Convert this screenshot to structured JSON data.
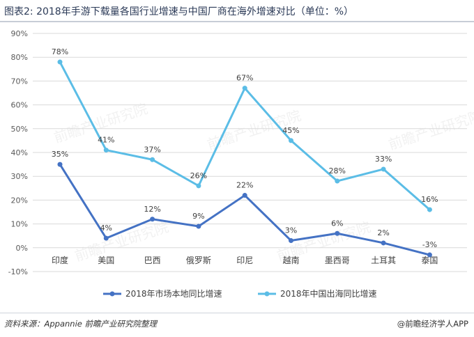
{
  "title": "图表2: 2018年手游下载量各国行业增速与中国厂商在海外增速对比（单位：%）",
  "source": "资料来源：Appannie 前瞻产业研究院整理",
  "brand": "@前瞻经济学人APP",
  "watermark": "前瞻产业研究院",
  "colors": {
    "series1": "#4472c4",
    "series2": "#5bbde6",
    "grid": "#d9d9d9",
    "axis_text": "#595959"
  },
  "chart_data": {
    "type": "line",
    "categories": [
      "印度",
      "美国",
      "巴西",
      "俄罗斯",
      "印尼",
      "越南",
      "墨西哥",
      "土耳其",
      "泰国"
    ],
    "series": [
      {
        "name": "2018年市场本地同比增速",
        "values": [
          35,
          4,
          12,
          9,
          22,
          3,
          6,
          2,
          -3
        ],
        "labels": [
          "35%",
          "4%",
          "12%",
          "9%",
          "22%",
          "3%",
          "6%",
          "2%",
          "-3%"
        ]
      },
      {
        "name": "2018年中国出海同比增速",
        "values": [
          78,
          41,
          37,
          26,
          67,
          45,
          28,
          33,
          16
        ],
        "labels": [
          "78%",
          "41%",
          "37%",
          "26%",
          "67%",
          "45%",
          "28%",
          "33%",
          "16%"
        ]
      }
    ],
    "yticks": [
      "-10%",
      "0%",
      "10%",
      "20%",
      "30%",
      "40%",
      "50%",
      "60%",
      "70%",
      "80%",
      "90%"
    ],
    "ylim": [
      -10,
      90
    ],
    "grid": true,
    "legend_position": "bottom"
  }
}
